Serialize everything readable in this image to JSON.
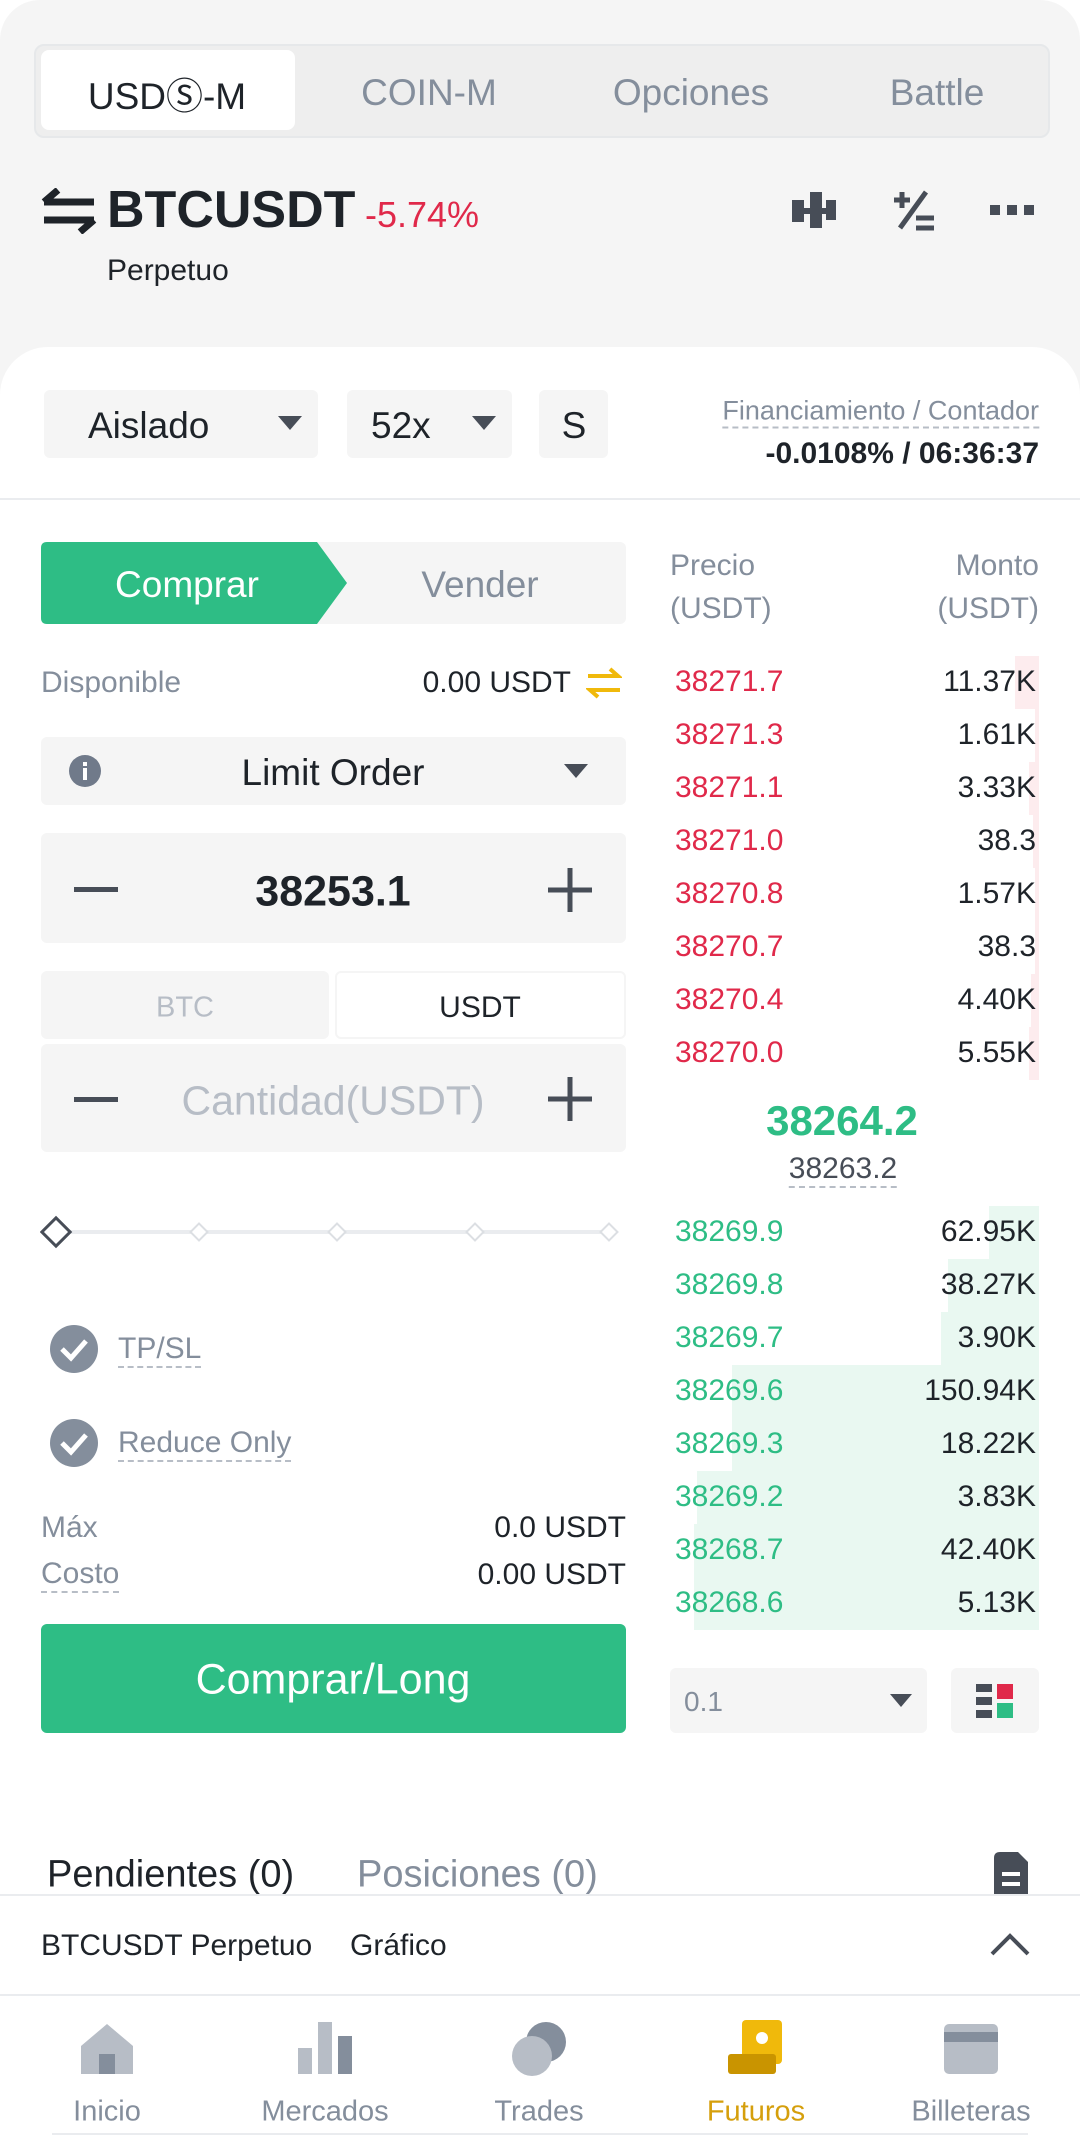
{
  "tabs": [
    "USDⓈ-M",
    "COIN-M",
    "Opciones",
    "Battle"
  ],
  "symbol": "BTCUSDT",
  "change": "-5.74%",
  "contract": "Perpetuo",
  "margin_mode": "Aislado",
  "leverage": "52x",
  "mode": "S",
  "funding_label": "Financiamiento / Contador",
  "funding_value": "-0.0108% / 06:36:37",
  "order_form": {
    "buy": "Comprar",
    "sell": "Vender",
    "available_label": "Disponible",
    "available_value": "0.00 USDT",
    "order_type": "Limit Order",
    "price": "38253.1",
    "unit_tabs": [
      "BTC",
      "USDT"
    ],
    "quantity_placeholder": "Cantidad(USDT)",
    "tpsl": "TP/SL",
    "reduce_only": "Reduce Only",
    "max_label": "Máx",
    "max_value": "0.0 USDT",
    "cost_label": "Costo",
    "cost_value": "0.00 USDT",
    "submit": "Comprar/Long"
  },
  "order_book": {
    "price_header": [
      "Precio",
      "(USDT)"
    ],
    "amount_header": [
      "Monto",
      "(USDT)"
    ],
    "asks": [
      {
        "price": "38271.7",
        "amount": "11.37K"
      },
      {
        "price": "38271.3",
        "amount": "1.61K"
      },
      {
        "price": "38271.1",
        "amount": "3.33K"
      },
      {
        "price": "38271.0",
        "amount": "38.3"
      },
      {
        "price": "38270.8",
        "amount": "1.57K"
      },
      {
        "price": "38270.7",
        "amount": "38.3"
      },
      {
        "price": "38270.4",
        "amount": "4.40K"
      },
      {
        "price": "38270.0",
        "amount": "5.55K"
      }
    ],
    "mark_price": "38264.2",
    "index_price": "38263.2",
    "bids": [
      {
        "price": "38269.9",
        "amount": "62.95K"
      },
      {
        "price": "38269.8",
        "amount": "38.27K"
      },
      {
        "price": "38269.7",
        "amount": "3.90K"
      },
      {
        "price": "38269.6",
        "amount": "150.94K"
      },
      {
        "price": "38269.3",
        "amount": "18.22K"
      },
      {
        "price": "38269.2",
        "amount": "3.83K"
      },
      {
        "price": "38268.7",
        "amount": "42.40K"
      },
      {
        "price": "38268.6",
        "amount": "5.13K"
      }
    ],
    "precision": "0.1"
  },
  "orders_tabs": [
    "Pendientes (0)",
    "Posiciones (0)"
  ],
  "footer_bar": {
    "symbol": "BTCUSDT Perpetuo",
    "chart": "Gráfico"
  },
  "nav": [
    "Inicio",
    "Mercados",
    "Trades",
    "Futuros",
    "Billeteras"
  ]
}
